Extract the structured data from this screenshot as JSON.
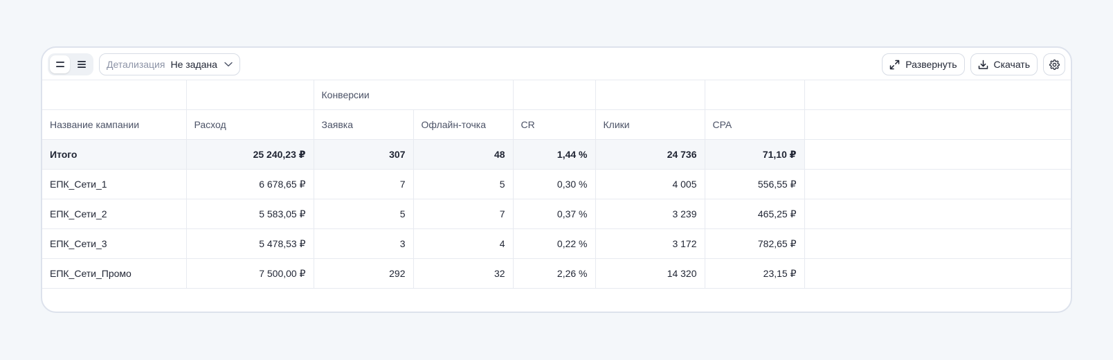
{
  "toolbar": {
    "detail_label": "Детализация",
    "detail_value": "Не задана",
    "expand_label": "Развернуть",
    "download_label": "Скачать"
  },
  "table": {
    "group_header": "Конверсии",
    "columns": [
      "Название кампании",
      "Расход",
      "Заявка",
      "Офлайн-точка",
      "CR",
      "Клики",
      "CPA"
    ],
    "total": {
      "name": "Итого",
      "spend": "25 240,23 ₽",
      "requests": "307",
      "offline": "48",
      "cr": "1,44 %",
      "clicks": "24 736",
      "cpa": "71,10 ₽"
    },
    "rows": [
      {
        "name": "ЕПК_Сети_1",
        "spend": "6 678,65 ₽",
        "requests": "7",
        "offline": "5",
        "cr": "0,30 %",
        "clicks": "4 005",
        "cpa": "556,55 ₽"
      },
      {
        "name": "ЕПК_Сети_2",
        "spend": "5 583,05 ₽",
        "requests": "5",
        "offline": "7",
        "cr": "0,37 %",
        "clicks": "3 239",
        "cpa": "465,25 ₽"
      },
      {
        "name": "ЕПК_Сети_3",
        "spend": "5 478,53 ₽",
        "requests": "3",
        "offline": "4",
        "cr": "0,22 %",
        "clicks": "3 172",
        "cpa": "782,65 ₽"
      },
      {
        "name": "ЕПК_Сети_Промо",
        "spend": "7 500,00 ₽",
        "requests": "292",
        "offline": "32",
        "cr": "2,26 %",
        "clicks": "14 320",
        "cpa": "23,15 ₽"
      }
    ]
  },
  "icons": {
    "view_compact": "two-lines-icon",
    "view_list": "three-lines-icon",
    "chevron": "chevron-down-icon",
    "expand": "expand-arrows-icon",
    "download": "download-icon",
    "settings": "gear-icon"
  },
  "colors": {
    "background": "#f4f7fa",
    "card_border": "#dde2ec",
    "total_row": "#f5f7fa",
    "muted_text": "#8c93a6"
  }
}
